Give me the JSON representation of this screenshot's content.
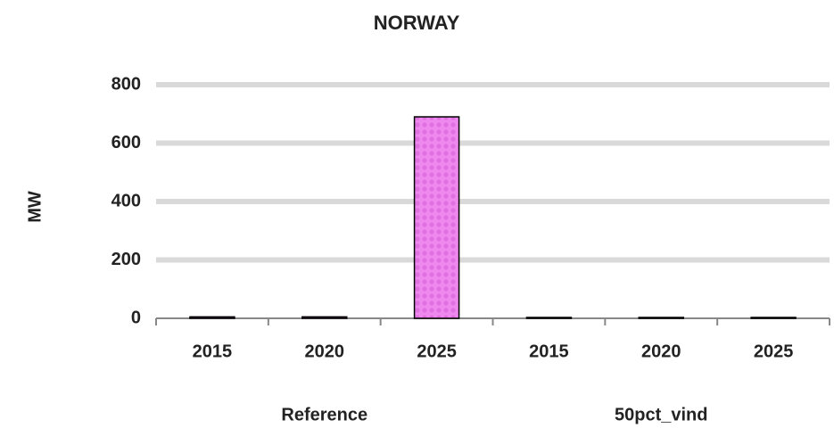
{
  "chart_data": {
    "type": "bar",
    "title": "NORWAY",
    "y_label": "MW",
    "categories": [
      "2015",
      "2020",
      "2025",
      "2015",
      "2020",
      "2025"
    ],
    "groups": [
      "Reference",
      "50pct_vind"
    ],
    "values": [
      5,
      5,
      690,
      3,
      3,
      3
    ],
    "color": "#ee88ee",
    "ylim": [
      0,
      800
    ],
    "yticks": [
      0,
      200,
      400,
      600,
      800
    ],
    "grid": true
  }
}
